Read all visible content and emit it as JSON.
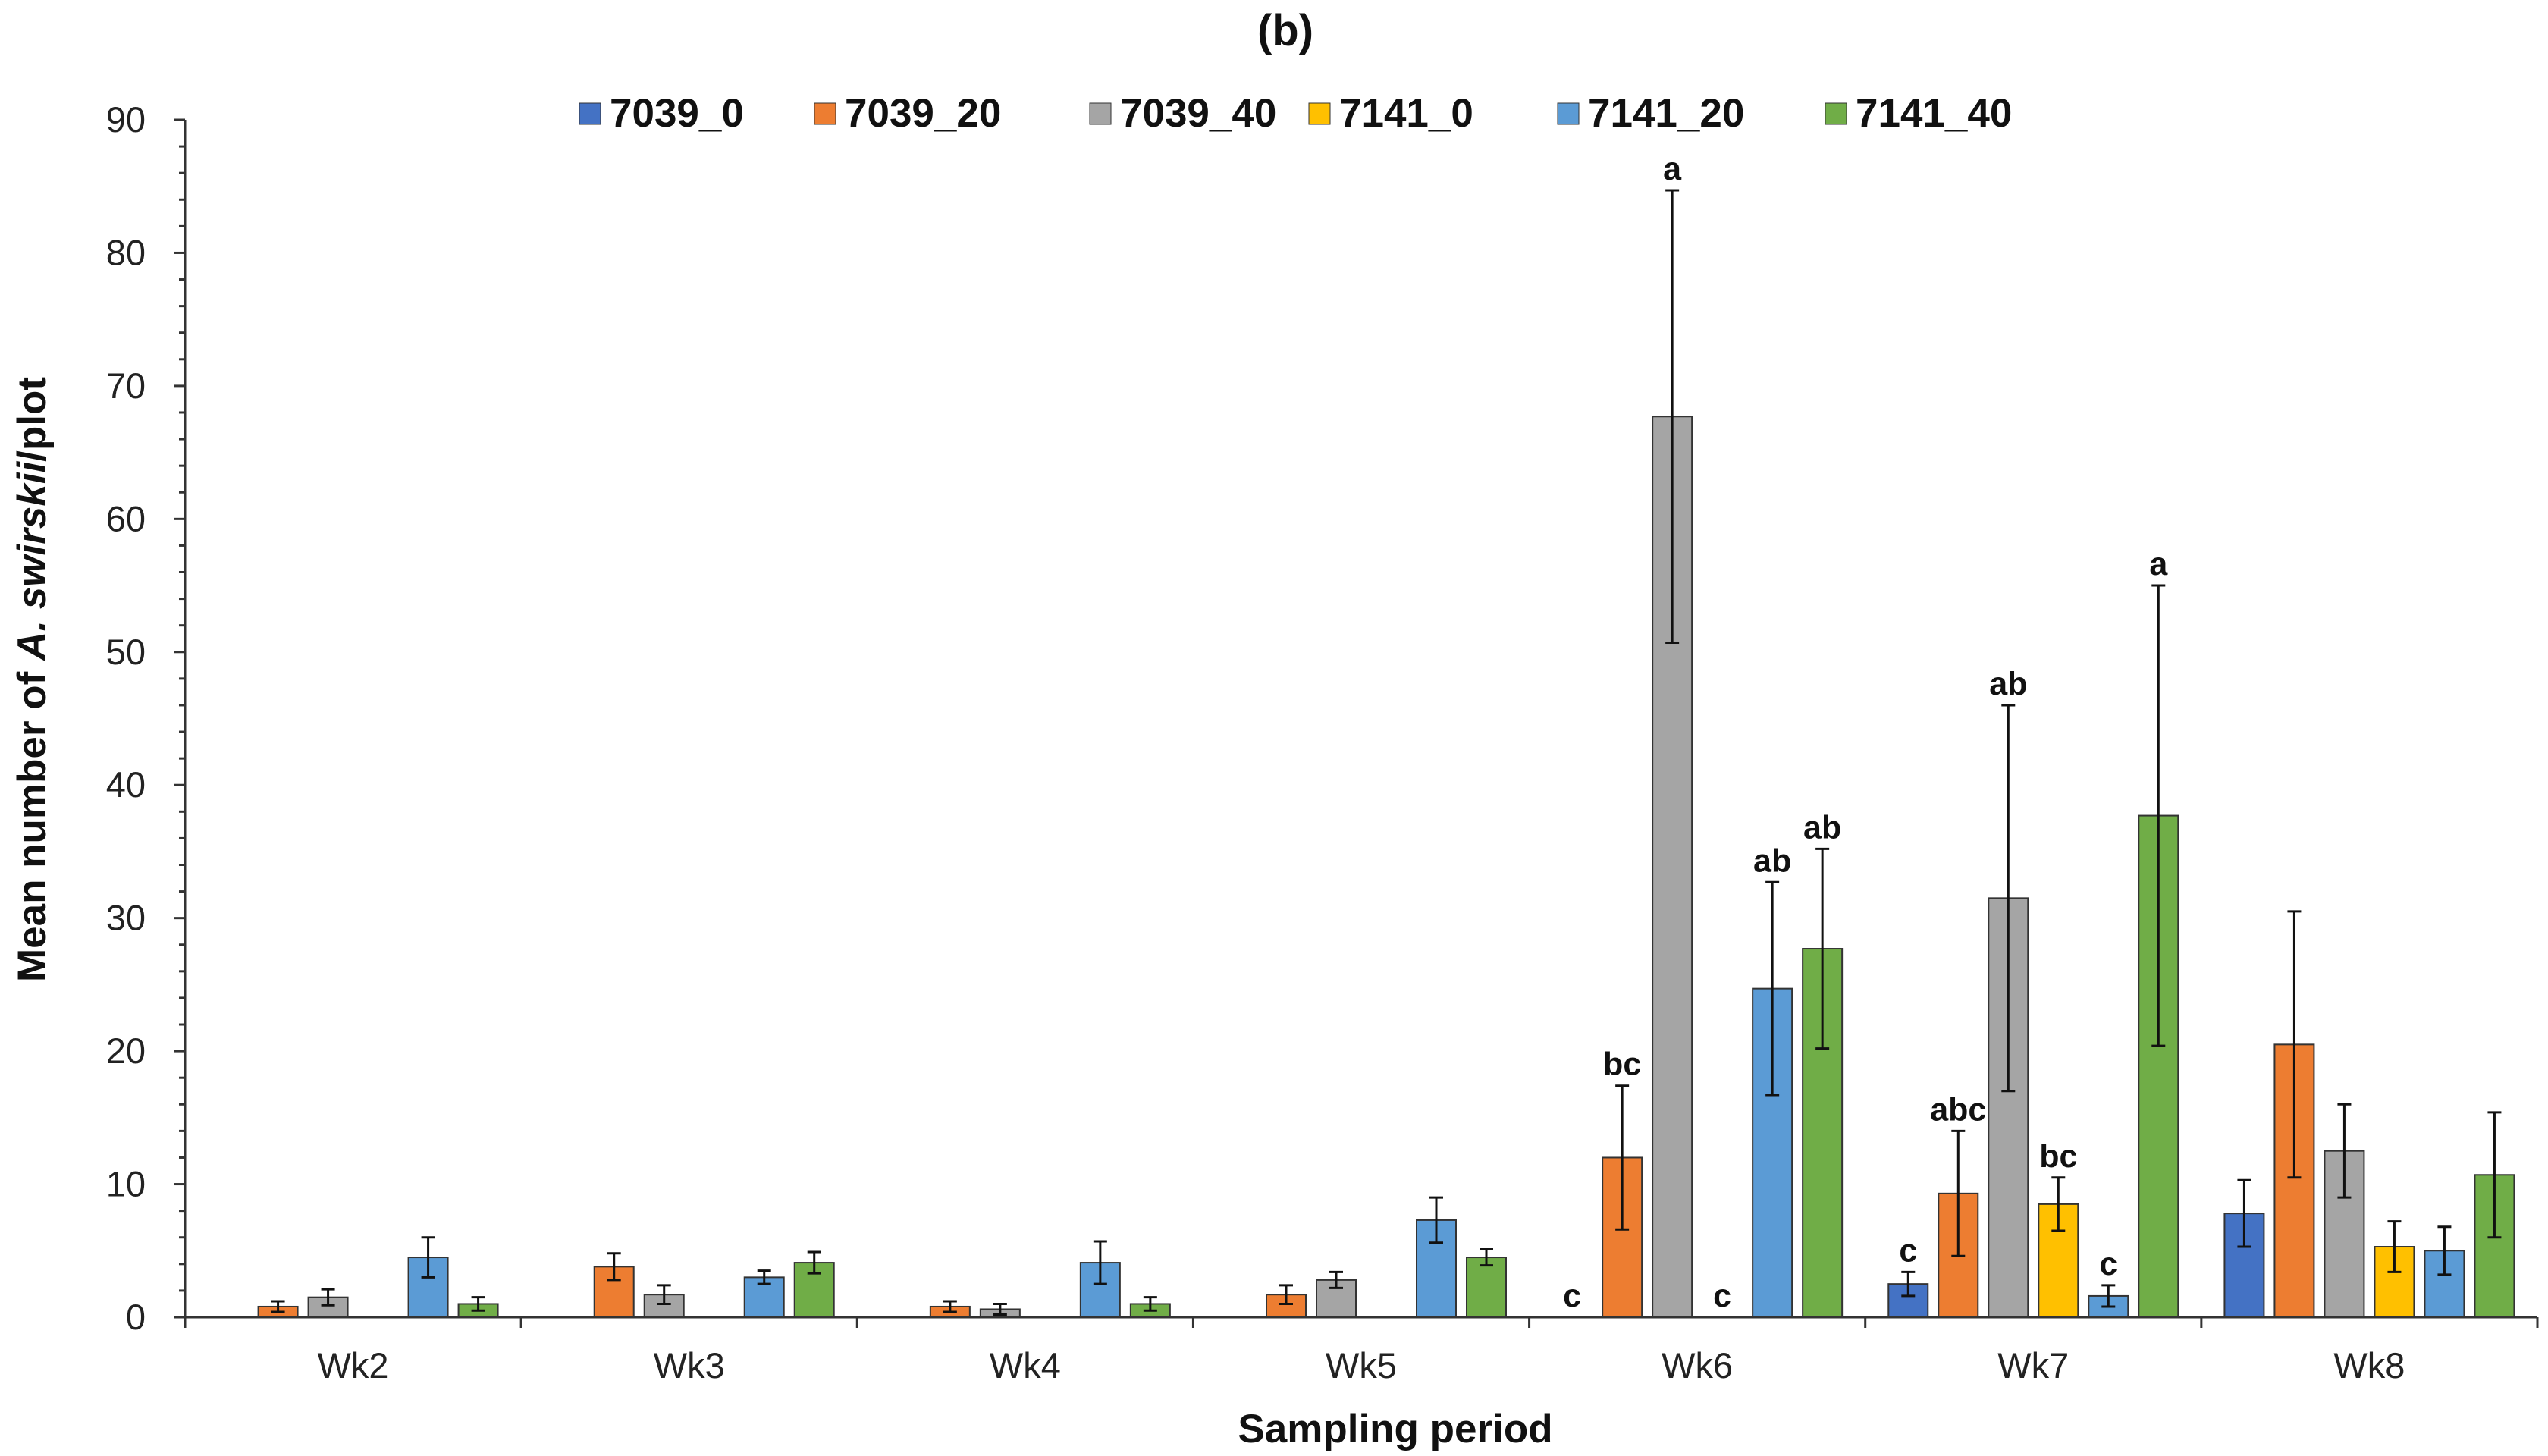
{
  "chart_data": {
    "type": "bar",
    "title": "(b)",
    "xlabel": "Sampling period",
    "ylabel": {
      "prefix": "Mean number of ",
      "italic": "A. swirskii",
      "suffix": "/plot"
    },
    "ylim": [
      0,
      90
    ],
    "yticks": [
      "0",
      "10",
      "20",
      "30",
      "40",
      "50",
      "60",
      "70",
      "80",
      "90"
    ],
    "categories": [
      "Wk2",
      "Wk3",
      "Wk4",
      "Wk5",
      "Wk6",
      "Wk7",
      "Wk8"
    ],
    "series": [
      {
        "name": "7039_0",
        "color": "#4472C4",
        "values": [
          0,
          0,
          0,
          0,
          0,
          2.5,
          7.8
        ],
        "errors": [
          0,
          0,
          0,
          0,
          0,
          0.9,
          2.5
        ],
        "labels": [
          "",
          "",
          "",
          "",
          "c",
          "c",
          ""
        ]
      },
      {
        "name": "7039_20",
        "color": "#ED7D31",
        "values": [
          0.8,
          3.8,
          0.8,
          1.7,
          12.0,
          9.3,
          20.5
        ],
        "errors": [
          0.4,
          1.0,
          0.4,
          0.7,
          5.4,
          4.7,
          10.0
        ],
        "labels": [
          "",
          "",
          "",
          "",
          "bc",
          "abc",
          ""
        ]
      },
      {
        "name": "7039_40",
        "color": "#A5A5A5",
        "values": [
          1.5,
          1.7,
          0.6,
          2.8,
          67.7,
          31.5,
          12.5
        ],
        "errors": [
          0.6,
          0.7,
          0.4,
          0.6,
          17.0,
          14.5,
          3.5
        ],
        "labels": [
          "",
          "",
          "",
          "",
          "a",
          "ab",
          ""
        ]
      },
      {
        "name": "7141_0",
        "color": "#FFC000",
        "values": [
          0,
          0,
          0,
          0,
          0,
          8.5,
          5.3
        ],
        "errors": [
          0,
          0,
          0,
          0,
          0,
          2.0,
          1.9
        ],
        "labels": [
          "",
          "",
          "",
          "",
          "c",
          "bc",
          ""
        ]
      },
      {
        "name": "7141_20",
        "color": "#5B9BD5",
        "values": [
          4.5,
          3.0,
          4.1,
          7.3,
          24.7,
          1.6,
          5.0
        ],
        "errors": [
          1.5,
          0.5,
          1.6,
          1.7,
          8.0,
          0.8,
          1.8
        ],
        "labels": [
          "",
          "",
          "",
          "",
          "ab",
          "c",
          ""
        ]
      },
      {
        "name": "7141_40",
        "color": "#70AD47",
        "values": [
          1.0,
          4.1,
          1.0,
          4.5,
          27.7,
          37.7,
          10.7
        ],
        "errors": [
          0.5,
          0.8,
          0.5,
          0.6,
          7.5,
          17.3,
          4.7
        ],
        "labels": [
          "",
          "",
          "",
          "",
          "ab",
          "a",
          ""
        ]
      }
    ],
    "legend_position": "top",
    "grid": false
  }
}
